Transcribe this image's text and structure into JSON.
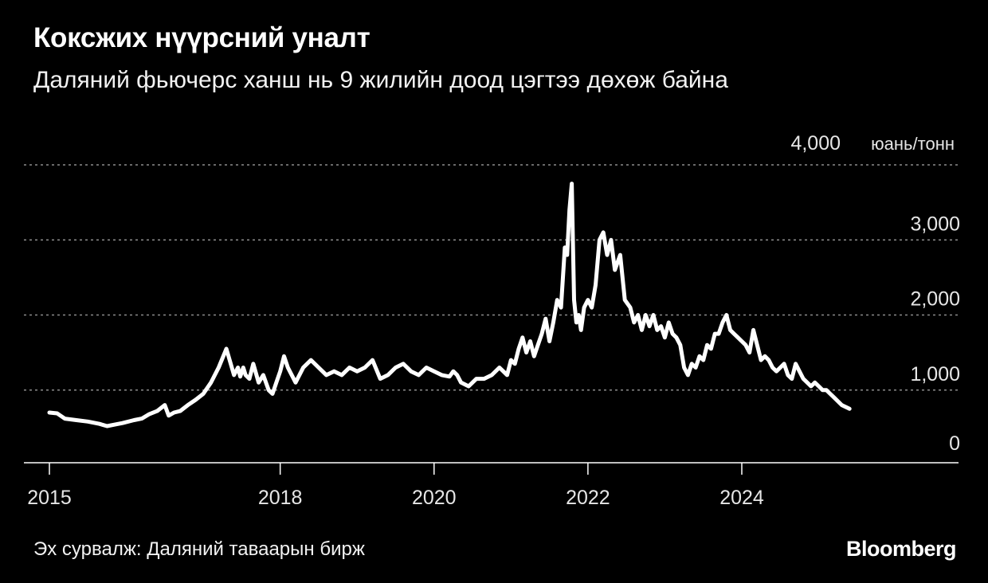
{
  "header": {
    "title": "Коксжих нүүрсний уналт",
    "subtitle": "Даляний фьючерс ханш нь 9 жилийн доод цэгтээ дөхөж байна"
  },
  "footer": {
    "source": "Эх сурвалж: Даляний таваарын бирж",
    "brand": "Bloomberg"
  },
  "colors": {
    "background": "#000000",
    "line": "#ffffff",
    "grid": "#8c8c8c"
  },
  "chart_data": {
    "type": "line",
    "title": "Коксжих нүүрсний уналт",
    "subtitle": "Даляний фьючерс ханш нь 9 жилийн доод цэгтээ дөхөж байна",
    "ylabel": "юань/тонн",
    "ylim": [
      0,
      4000
    ],
    "xlim": [
      2015,
      2026.4
    ],
    "y_ticks": [
      0,
      1000,
      2000,
      3000,
      4000
    ],
    "y_tick_labels": [
      "0",
      "1,000",
      "2,000",
      "3,000",
      "4,000"
    ],
    "x_ticks": [
      2015,
      2018,
      2020,
      2022,
      2024
    ],
    "x_tick_labels": [
      "2015",
      "2018",
      "2020",
      "2022",
      "2024"
    ],
    "grid": true,
    "series": [
      {
        "x": [
          2015.0,
          2015.1,
          2015.2,
          2015.35,
          2015.5,
          2015.65,
          2015.75,
          2015.85,
          2015.95,
          2016.1,
          2016.2,
          2016.3,
          2016.4,
          2016.5,
          2016.55,
          2016.62,
          2016.7,
          2016.8,
          2016.9,
          2017.0,
          2017.1,
          2017.2,
          2017.3,
          2017.4,
          2017.45,
          2017.48,
          2017.52,
          2017.55,
          2017.6,
          2017.65,
          2017.72,
          2017.78,
          2017.85,
          2017.9,
          2017.95,
          2018.0,
          2018.05,
          2018.1,
          2018.2,
          2018.3,
          2018.4,
          2018.5,
          2018.6,
          2018.7,
          2018.8,
          2018.9,
          2019.0,
          2019.1,
          2019.2,
          2019.3,
          2019.4,
          2019.5,
          2019.6,
          2019.7,
          2019.8,
          2019.9,
          2020.0,
          2020.1,
          2020.2,
          2020.25,
          2020.3,
          2020.35,
          2020.45,
          2020.55,
          2020.65,
          2020.75,
          2020.85,
          2020.95,
          2021.0,
          2021.05,
          2021.1,
          2021.15,
          2021.2,
          2021.25,
          2021.3,
          2021.35,
          2021.4,
          2021.45,
          2021.5,
          2021.55,
          2021.6,
          2021.65,
          2021.7,
          2021.73,
          2021.76,
          2021.79,
          2021.82,
          2021.85,
          2021.88,
          2021.91,
          2021.95,
          2022.0,
          2022.05,
          2022.1,
          2022.15,
          2022.2,
          2022.25,
          2022.3,
          2022.35,
          2022.42,
          2022.48,
          2022.55,
          2022.6,
          2022.65,
          2022.7,
          2022.75,
          2022.8,
          2022.85,
          2022.9,
          2022.95,
          2023.0,
          2023.05,
          2023.1,
          2023.15,
          2023.2,
          2023.25,
          2023.3,
          2023.35,
          2023.4,
          2023.45,
          2023.5,
          2023.55,
          2023.6,
          2023.65,
          2023.7,
          2023.75,
          2023.8,
          2023.85,
          2023.9,
          2023.95,
          2024.0,
          2024.05,
          2024.1,
          2024.15,
          2024.2,
          2024.25,
          2024.3,
          2024.35,
          2024.4,
          2024.45,
          2024.5,
          2024.55,
          2024.6,
          2024.65,
          2024.7,
          2024.75,
          2024.8,
          2024.85,
          2024.9,
          2024.95,
          2025.0,
          2025.05,
          2025.1,
          2025.15,
          2025.2,
          2025.3,
          2025.4
        ],
        "values": [
          700,
          690,
          620,
          600,
          580,
          550,
          520,
          540,
          560,
          600,
          620,
          680,
          720,
          800,
          660,
          700,
          720,
          800,
          870,
          950,
          1100,
          1300,
          1550,
          1200,
          1300,
          1180,
          1300,
          1200,
          1150,
          1350,
          1100,
          1200,
          1000,
          950,
          1100,
          1250,
          1450,
          1300,
          1100,
          1300,
          1400,
          1300,
          1200,
          1250,
          1200,
          1300,
          1250,
          1300,
          1400,
          1150,
          1200,
          1300,
          1350,
          1250,
          1200,
          1300,
          1250,
          1200,
          1180,
          1250,
          1200,
          1100,
          1050,
          1150,
          1150,
          1200,
          1300,
          1200,
          1400,
          1350,
          1550,
          1700,
          1500,
          1650,
          1450,
          1600,
          1750,
          1950,
          1650,
          1900,
          2200,
          2100,
          2900,
          2800,
          3400,
          3750,
          2200,
          1900,
          2000,
          1800,
          2100,
          2200,
          2100,
          2400,
          3000,
          3100,
          2800,
          3000,
          2600,
          2800,
          2200,
          2100,
          1900,
          2000,
          1800,
          2000,
          1850,
          2000,
          1800,
          1850,
          1700,
          1900,
          1750,
          1700,
          1600,
          1300,
          1200,
          1350,
          1300,
          1450,
          1400,
          1600,
          1550,
          1750,
          1750,
          1900,
          2000,
          1800,
          1750,
          1700,
          1650,
          1600,
          1500,
          1800,
          1600,
          1400,
          1450,
          1400,
          1300,
          1250,
          1300,
          1350,
          1200,
          1150,
          1350,
          1250,
          1150,
          1100,
          1050,
          1100,
          1050,
          1000,
          1000,
          950,
          900,
          800,
          750
        ]
      }
    ]
  }
}
